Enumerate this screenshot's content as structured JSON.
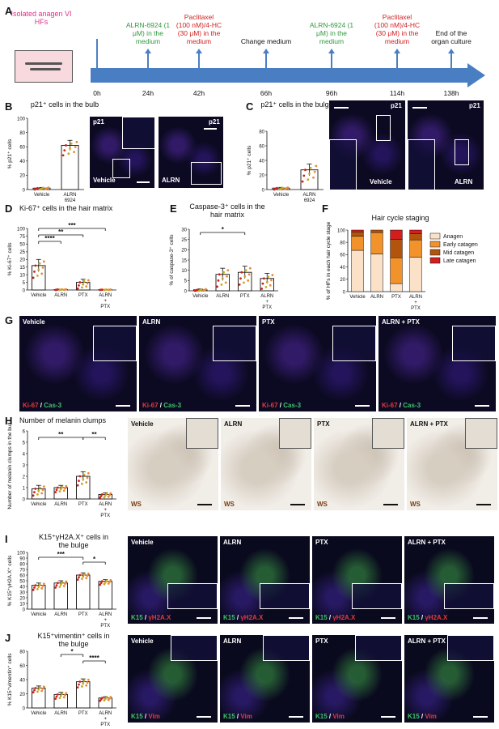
{
  "panels": {
    "A": {
      "label": "A",
      "dish_label": "Isolated anagen VI HFs",
      "events": [
        {
          "time": "0h",
          "text": ""
        },
        {
          "time": "24h",
          "text": "ALRN-6924 (1 μM) in the medium",
          "color": "#2e9a3a"
        },
        {
          "time": "42h",
          "text": "Paclitaxel (100 nM)/4-HC (30 μM) in the medium",
          "color": "#d11e1e"
        },
        {
          "time": "66h",
          "text": "Change medium",
          "color": "#111111"
        },
        {
          "time": "96h",
          "text": "ALRN-6924 (1 μM) in the medium",
          "color": "#2e9a3a"
        },
        {
          "time": "114h",
          "text": "Paclitaxel (100 nM)/4-HC (30 μM) in the medium",
          "color": "#d11e1e"
        },
        {
          "time": "138h",
          "text": "End of the organ culture",
          "color": "#111111"
        }
      ]
    },
    "B": {
      "label": "B",
      "title": "p21⁺ cells in the bulb",
      "ylabel": "% p21⁺ cells",
      "img1": "Vehicle",
      "img2": "ALRN",
      "marker": "p21"
    },
    "C": {
      "label": "C",
      "title": "p21⁺ cells in the bulge",
      "ylabel": "% p21⁺ cells",
      "img1": "Vehicle",
      "img2": "ALRN",
      "marker": "p21"
    },
    "D": {
      "label": "D",
      "title": "Ki-67⁺ cells in the hair matrix",
      "ylabel": "% Ki-67⁺ cells"
    },
    "E": {
      "label": "E",
      "title": "Caspase-3⁺ cells in the hair matrix",
      "ylabel": "% of caspase-3⁺ cells"
    },
    "F": {
      "label": "F",
      "title": "Hair cycle staging",
      "ylabel": "% of HFs in each hair cycle stage"
    },
    "G": {
      "label": "G",
      "images": [
        "Vehicle",
        "ALRN",
        "PTX",
        "ALRN + PTX"
      ],
      "stain_a": "Ki-67",
      "stain_b": "Cas-3"
    },
    "H": {
      "label": "H",
      "title": "Number of melanin clumps",
      "ylabel": "Number of melanin clumps in the bulb",
      "images": [
        "Vehicle",
        "ALRN",
        "PTX",
        "ALRN + PTX"
      ],
      "stain": "WS"
    },
    "I": {
      "label": "I",
      "title": "K15⁺γH2A.X⁺ cells in the bulge",
      "ylabel": "% K15⁺γH2A.X⁺ cells",
      "images": [
        "Vehicle",
        "ALRN",
        "PTX",
        "ALRN + PTX"
      ],
      "stain_a": "K15",
      "stain_b": "γH2A.X"
    },
    "J": {
      "label": "J",
      "title": "K15⁺vimentin⁺ cells in the bulge",
      "ylabel": "% K15⁺vimentin⁺ cells",
      "images": [
        "Vehicle",
        "ALRN",
        "PTX",
        "ALRN + PTX"
      ],
      "stain_a": "K15",
      "stain_b": "Vim"
    }
  },
  "chart_data": [
    {
      "id": "B",
      "type": "bar",
      "categories": [
        "Vehicle",
        "ALRN 6924"
      ],
      "values": [
        2,
        62
      ],
      "errors": [
        1,
        7
      ],
      "ylim": [
        0,
        100
      ],
      "yticks": [
        0,
        20,
        40,
        60,
        80,
        100
      ]
    },
    {
      "id": "C",
      "type": "bar",
      "categories": [
        "Vehicle",
        "ALRN 6924"
      ],
      "values": [
        2,
        27
      ],
      "errors": [
        1,
        8
      ],
      "ylim": [
        0,
        80
      ],
      "yticks": [
        0,
        20,
        40,
        60,
        80
      ],
      "significance": [
        "*"
      ]
    },
    {
      "id": "D",
      "type": "bar",
      "categories": [
        "Vehicle",
        "ALRN",
        "PTX",
        "ALRN + PTX"
      ],
      "values": [
        16,
        0.3,
        5,
        0.2
      ],
      "errors": [
        4,
        0.2,
        2,
        0.1
      ],
      "ylim": [
        0,
        100
      ],
      "yticks": [
        0,
        5,
        10,
        15,
        20,
        25,
        50,
        75,
        100
      ],
      "significance": [
        "****",
        "**",
        "***"
      ]
    },
    {
      "id": "E",
      "type": "bar",
      "categories": [
        "Vehicle",
        "ALRN",
        "PTX",
        "ALRN + PTX"
      ],
      "values": [
        0.5,
        8,
        9,
        6
      ],
      "errors": [
        0.4,
        3,
        3,
        2.5
      ],
      "ylim": [
        0,
        30
      ],
      "yticks": [
        0,
        5,
        10,
        15,
        20,
        25,
        30
      ],
      "significance": [
        "*"
      ]
    },
    {
      "id": "F",
      "type": "bar",
      "stacked": true,
      "categories": [
        "Vehicle",
        "ALRN",
        "PTX",
        "ALRN + PTX"
      ],
      "ylim": [
        0,
        100
      ],
      "yticks": [
        0,
        20,
        40,
        60,
        80,
        100
      ],
      "series": [
        {
          "name": "Anagen",
          "color": "#fbe1c8",
          "values": [
            67,
            61,
            13,
            56
          ]
        },
        {
          "name": "Early catagen",
          "color": "#f2922a",
          "values": [
            23,
            35,
            42,
            28
          ]
        },
        {
          "name": "Mid catagen",
          "color": "#b3540e",
          "values": [
            7,
            4,
            30,
            10
          ]
        },
        {
          "name": "Late catagen",
          "color": "#d11e1e",
          "values": [
            3,
            0,
            15,
            6
          ]
        }
      ]
    },
    {
      "id": "H",
      "type": "bar",
      "categories": [
        "Vehicle",
        "ALRN",
        "PTX",
        "ALRN + PTX"
      ],
      "values": [
        0.9,
        1.0,
        2.0,
        0.4
      ],
      "errors": [
        0.3,
        0.2,
        0.4,
        0.15
      ],
      "ylim": [
        0,
        6
      ],
      "yticks": [
        0,
        1,
        2,
        3,
        4,
        5,
        6
      ],
      "significance": [
        "**",
        "**"
      ]
    },
    {
      "id": "I",
      "type": "bar",
      "categories": [
        "Vehicle",
        "ALRN",
        "PTX",
        "ALRN + PTX"
      ],
      "values": [
        42,
        46,
        60,
        49
      ],
      "errors": [
        4,
        4,
        4,
        3
      ],
      "ylim": [
        0,
        100
      ],
      "yticks": [
        0,
        10,
        20,
        30,
        40,
        50,
        60,
        70,
        80,
        90,
        100
      ],
      "significance": [
        "***",
        "*"
      ]
    },
    {
      "id": "J",
      "type": "bar",
      "categories": [
        "Vehicle",
        "ALRN",
        "PTX",
        "ALRN + PTX"
      ],
      "values": [
        28,
        19,
        37,
        14
      ],
      "errors": [
        3,
        3,
        4,
        2
      ],
      "ylim": [
        0,
        80
      ],
      "yticks": [
        0,
        20,
        40,
        60,
        80
      ],
      "significance": [
        "*",
        "****"
      ]
    }
  ]
}
